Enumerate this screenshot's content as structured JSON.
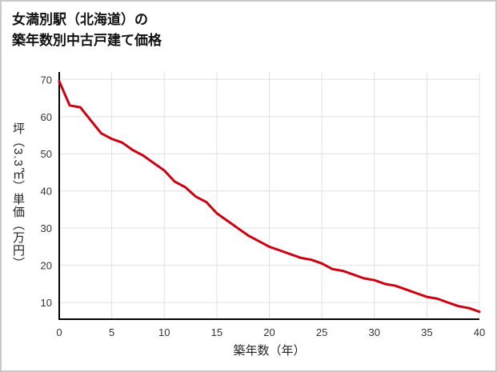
{
  "title": {
    "line1": "女満別駅（北海道）の",
    "line2": "築年数別中古戸建て価格"
  },
  "chart_data": {
    "type": "line",
    "title": "女満別駅（北海道）の築年数別中古戸建て価格",
    "xlabel": "築年数（年）",
    "ylabel": "坪（3.3㎡）単価（万円）",
    "x": [
      0,
      1,
      2,
      3,
      4,
      5,
      6,
      7,
      8,
      9,
      10,
      11,
      12,
      13,
      14,
      15,
      16,
      17,
      18,
      19,
      20,
      21,
      22,
      23,
      24,
      25,
      26,
      27,
      28,
      29,
      30,
      31,
      32,
      33,
      34,
      35,
      36,
      37,
      38,
      39,
      40
    ],
    "values": [
      69.5,
      63,
      62.5,
      59,
      55.5,
      54,
      53,
      51,
      49.5,
      47.5,
      45.5,
      42.5,
      41,
      38.5,
      37,
      34,
      32,
      30,
      28,
      26.5,
      25,
      24,
      23,
      22,
      21.5,
      20.5,
      19,
      18.5,
      17.5,
      16.5,
      16,
      15,
      14.5,
      13.5,
      12.5,
      11.5,
      11,
      10,
      9,
      8.5,
      7.5
    ],
    "xlim": [
      0,
      40
    ],
    "ylim": [
      5.5,
      72
    ],
    "xticks": [
      0,
      5,
      10,
      15,
      20,
      25,
      30,
      35,
      40
    ],
    "yticks": [
      10,
      20,
      30,
      40,
      50,
      60,
      70
    ],
    "grid": true,
    "legend": "none",
    "line_color": "#cc0011",
    "grid_color": "#e0e0e0",
    "axis_color": "#000000",
    "tick_color": "#333333"
  }
}
